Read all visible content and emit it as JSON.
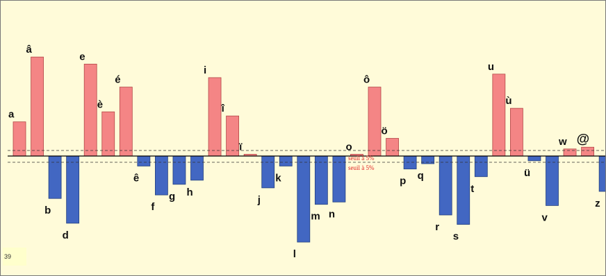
{
  "chart_data": {
    "type": "bar",
    "title": "",
    "xlabel": "",
    "ylabel": "",
    "ylim": [
      -140,
      180
    ],
    "grid": false,
    "categories": [
      "a",
      "â",
      "b",
      "d",
      "e",
      "è",
      "é",
      "ê",
      "f",
      "g",
      "h",
      "i",
      "î",
      "ï",
      "j",
      "k",
      "l",
      "m",
      "n",
      "o",
      "ô",
      "ö",
      "p",
      "q",
      "r",
      "s",
      "t",
      "u",
      "ù",
      "ü",
      "v",
      "w",
      "@",
      "z"
    ],
    "values": [
      58,
      168,
      -72,
      -114,
      156,
      75,
      117,
      -17,
      -66,
      -48,
      -41,
      133,
      68,
      3,
      -54,
      -17,
      -146,
      -82,
      -78,
      3,
      117,
      30,
      -22,
      -13,
      -100,
      -116,
      -35,
      139,
      81,
      -8,
      -84,
      12,
      15,
      -60
    ],
    "colors": {
      "positive": "#f48585",
      "negative": "#4267c2"
    },
    "threshold_label": "seuil à 5%",
    "corner_label": "39"
  }
}
